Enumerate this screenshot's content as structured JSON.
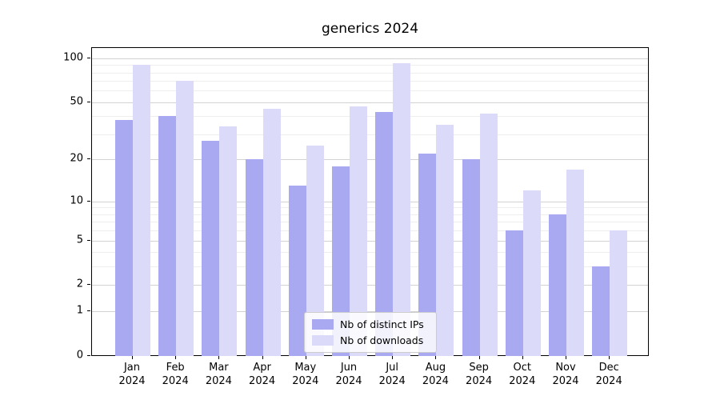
{
  "title": "generics 2024",
  "chart_data": {
    "type": "bar",
    "title": "generics 2024",
    "categories": [
      "Jan",
      "Feb",
      "Mar",
      "Apr",
      "May",
      "Jun",
      "Jul",
      "Aug",
      "Sep",
      "Oct",
      "Nov",
      "Dec"
    ],
    "category_year": "2024",
    "series": [
      {
        "name": "Nb of distinct IPs",
        "color": "#a9a9f1",
        "values": [
          38,
          40,
          27,
          20,
          13,
          18,
          43,
          22,
          20,
          6,
          8,
          3
        ]
      },
      {
        "name": "Nb of downloads",
        "color": "#dbdbf9",
        "values": [
          90,
          70,
          34,
          45,
          25,
          47,
          92,
          35,
          42,
          12,
          17,
          6
        ]
      }
    ],
    "xlabel": "",
    "ylabel": "",
    "y_axis": {
      "scale": "log1p",
      "ticks": [
        100,
        50,
        20,
        10,
        5,
        2,
        1,
        0
      ],
      "minor_gridlines": [
        3,
        4,
        6,
        7,
        8,
        9,
        30,
        40,
        60,
        70,
        80,
        90
      ],
      "ylim": [
        0,
        115
      ]
    },
    "grid": true,
    "legend_position": "lower center"
  },
  "colors": {
    "background": "#ffffff",
    "spine": "#000000",
    "major_grid": "#d2d2d2",
    "minor_grid": "#eeeeee",
    "bar_distinct_ips": "#a9a9f1",
    "bar_downloads": "#dbdbf9",
    "legend_border": "#cccccc"
  }
}
